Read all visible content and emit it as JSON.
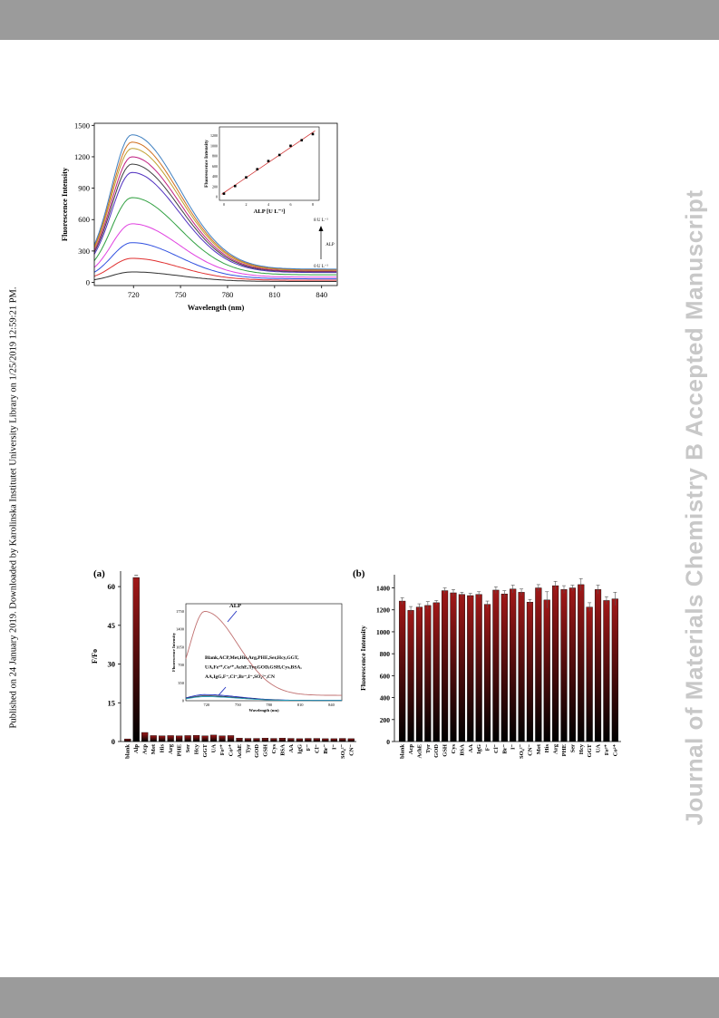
{
  "margin_text": {
    "left": "Published on 24 January 2019. Downloaded by Karolinska Institutet University Library on 1/25/2019 12:59:21 PM.",
    "right": "Journal of Materials Chemistry B Accepted Manuscript"
  },
  "chart_data": [
    {
      "type": "line",
      "title": "",
      "xlabel": "Wavelength (nm)",
      "ylabel": "Fluorescence Intensity",
      "xlim": [
        695,
        850
      ],
      "ylim": [
        -30,
        1520
      ],
      "xticks": [
        "720",
        "750",
        "780",
        "810",
        "840"
      ],
      "yticks": [
        "0",
        "300",
        "600",
        "900",
        "1200",
        "1500"
      ],
      "peaks": [
        100,
        230,
        380,
        560,
        810,
        1050,
        1130,
        1200,
        1280,
        1340,
        1410
      ],
      "colors": [
        "#303030",
        "#e03030",
        "#3050e0",
        "#e040e0",
        "#30a040",
        "#5030c0",
        "#404040",
        "#c02080",
        "#c0a030",
        "#d07020",
        "#4080c0"
      ],
      "annotations": {
        "top_label": "8 U L⁻¹",
        "arrow_label": "ALP",
        "bottom_label": "0 U L⁻¹"
      },
      "inset": {
        "type": "scatter",
        "xlabel": "ALP [U L⁻¹]",
        "ylabel": "Fluorescence Intensity",
        "xticks": [
          "0",
          "2",
          "4",
          "6",
          "8"
        ],
        "yticks": [
          "0",
          "200",
          "400",
          "600",
          "800",
          "1000",
          "1200"
        ],
        "x": [
          0,
          1,
          2,
          3,
          4,
          5,
          6,
          7,
          8
        ],
        "y": [
          60,
          210,
          380,
          540,
          700,
          820,
          1000,
          1110,
          1230
        ],
        "fit_line": true
      }
    },
    {
      "type": "bar",
      "panel_label": "(a)",
      "ylabel": "F/Fo",
      "ylim": [
        0,
        66
      ],
      "yticks": [
        "0",
        "15",
        "30",
        "45",
        "60"
      ],
      "categories": [
        "blank",
        "Alp",
        "Acp",
        "Met",
        "His",
        "Arg",
        "PHE",
        "Ser",
        "Hcy",
        "GGT",
        "UA",
        "Fe³⁺",
        "Co²⁺",
        "AchE",
        "Tyr",
        "GOD",
        "GSH",
        "Cys",
        "BSA",
        "AA",
        "IgG",
        "F⁻",
        "Cl⁻",
        "Br⁻",
        "I⁻",
        "SO₄²⁻",
        "CN⁻"
      ],
      "values": [
        1,
        63.5,
        3.5,
        2.3,
        2.2,
        2.3,
        2.2,
        2.3,
        2.4,
        2.2,
        2.5,
        2.2,
        2.3,
        1.3,
        1.2,
        1.2,
        1.3,
        1.2,
        1.3,
        1.2,
        1.1,
        1.2,
        1.2,
        1.1,
        1.1,
        1.2,
        1.1
      ],
      "inset": {
        "type": "line",
        "xlabel": "Wavelength (nm)",
        "ylabel": "Fluorescence Intensity",
        "xticks": [
          "720",
          "750",
          "780",
          "810",
          "840"
        ],
        "yticks": [
          "0",
          "350",
          "700",
          "1050",
          "1400",
          "1750"
        ],
        "annotation_alp": "ALP",
        "annotation_group": [
          "Blank,ACP,Met,His,Arg,PHE,Ser,Hcy,GGT,",
          "UA,Fe³⁺,Co²⁺,AchE,Tyr,GOD,GSH,Cys,BSA,",
          "AA,IgG,F⁻,Cl⁻,Br⁻,I⁻,SO₄²⁻,CN"
        ]
      }
    },
    {
      "type": "bar",
      "panel_label": "(b)",
      "ylabel": "Fluorescence Intensity",
      "ylim": [
        0,
        1520
      ],
      "yticks": [
        "0",
        "200",
        "400",
        "600",
        "800",
        "1000",
        "1200",
        "1400"
      ],
      "categories": [
        "blank",
        "Acp",
        "AchE",
        "Tyr",
        "GOD",
        "GSH",
        "Cys",
        "BSA",
        "AA",
        "IgG",
        "F⁻",
        "Cl⁻",
        "Br⁻",
        "I⁻",
        "SO₄²⁻",
        "CN⁻",
        "Met",
        "His",
        "Arg",
        "PHE",
        "Ser",
        "Hcy",
        "GGT",
        "UA",
        "Fe³⁺",
        "Co²⁺"
      ],
      "values": [
        1280,
        1195,
        1225,
        1240,
        1265,
        1375,
        1355,
        1340,
        1330,
        1340,
        1250,
        1380,
        1345,
        1390,
        1360,
        1270,
        1400,
        1290,
        1420,
        1385,
        1400,
        1430,
        1225,
        1385,
        1285,
        1300
      ],
      "errors": [
        30,
        35,
        30,
        35,
        20,
        25,
        30,
        20,
        20,
        25,
        30,
        30,
        30,
        35,
        30,
        25,
        30,
        75,
        40,
        35,
        25,
        55,
        40,
        40,
        35,
        60
      ]
    }
  ]
}
